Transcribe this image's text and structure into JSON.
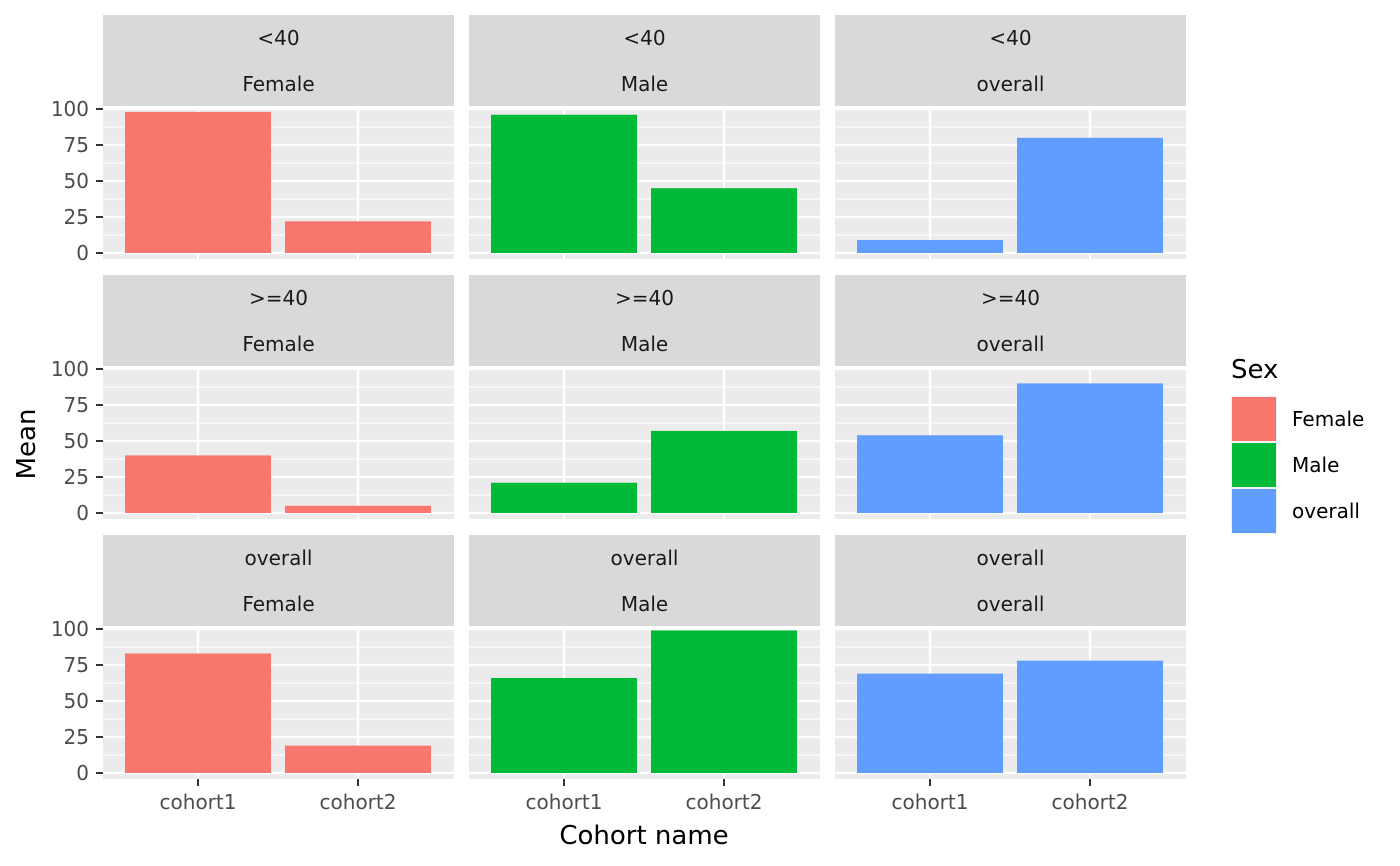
{
  "chart_data": {
    "type": "bar",
    "layout": "facet_grid",
    "xlabel": "Cohort name",
    "ylabel": "Mean",
    "categories": [
      "cohort1",
      "cohort2"
    ],
    "y_ticks": [
      0,
      25,
      50,
      75,
      100
    ],
    "ylim": [
      0,
      100
    ],
    "grid": true,
    "legend": {
      "title": "Sex",
      "position": "right",
      "entries": [
        {
          "label": "Female",
          "color": "#F8766D"
        },
        {
          "label": "Male",
          "color": "#00BA38"
        },
        {
          "label": "overall",
          "color": "#619CFF"
        }
      ]
    },
    "row_strips": [
      "<40",
      ">=40",
      "overall"
    ],
    "col_strips": [
      "Female",
      "Male",
      "overall"
    ],
    "panels": [
      {
        "row": "<40",
        "col": "Female",
        "color": "#F8766D",
        "values": [
          98,
          22
        ]
      },
      {
        "row": "<40",
        "col": "Male",
        "color": "#00BA38",
        "values": [
          96,
          45
        ]
      },
      {
        "row": "<40",
        "col": "overall",
        "color": "#619CFF",
        "values": [
          9,
          80
        ]
      },
      {
        "row": ">=40",
        "col": "Female",
        "color": "#F8766D",
        "values": [
          40,
          5
        ]
      },
      {
        "row": ">=40",
        "col": "Male",
        "color": "#00BA38",
        "values": [
          21,
          57
        ]
      },
      {
        "row": ">=40",
        "col": "overall",
        "color": "#619CFF",
        "values": [
          54,
          90
        ]
      },
      {
        "row": "overall",
        "col": "Female",
        "color": "#F8766D",
        "values": [
          83,
          19
        ]
      },
      {
        "row": "overall",
        "col": "Male",
        "color": "#00BA38",
        "values": [
          66,
          99
        ]
      },
      {
        "row": "overall",
        "col": "overall",
        "color": "#619CFF",
        "values": [
          69,
          78
        ]
      }
    ]
  }
}
